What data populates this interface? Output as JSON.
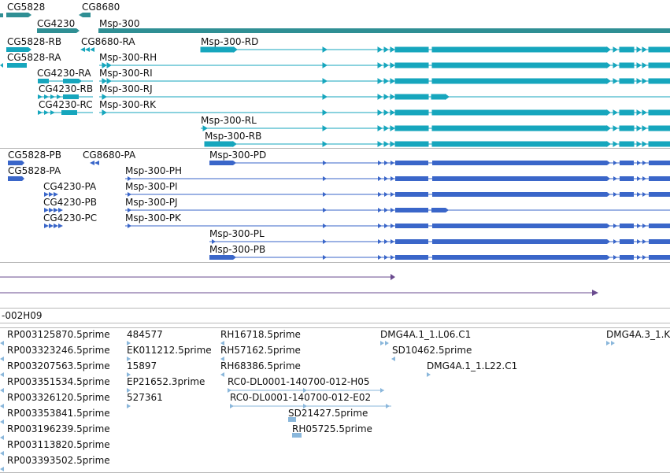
{
  "colors": {
    "gene": "#2f8f94",
    "transcript": "#16a6bd",
    "protein": "#3a66c9",
    "match": "#6a4b8f",
    "est": "#8ab7db",
    "separator": "#b8b8b8"
  },
  "genes": [
    {
      "label": "CG5828"
    },
    {
      "label": "CG8680"
    },
    {
      "label": "CG4230"
    },
    {
      "label": "Msp-300"
    }
  ],
  "transcripts": [
    {
      "label": "CG5828-RB"
    },
    {
      "label": "CG8680-RA"
    },
    {
      "label": "Msp-300-RD"
    },
    {
      "label": "CG5828-RA"
    },
    {
      "label": "Msp-300-RH"
    },
    {
      "label": "CG4230-RA"
    },
    {
      "label": "Msp-300-RI"
    },
    {
      "label": "CG4230-RB"
    },
    {
      "label": "Msp-300-RJ"
    },
    {
      "label": "CG4230-RC"
    },
    {
      "label": "Msp-300-RK"
    },
    {
      "label": "Msp-300-RL"
    },
    {
      "label": "Msp-300-RB"
    }
  ],
  "proteins": [
    {
      "label": "CG5828-PB"
    },
    {
      "label": "CG8680-PA"
    },
    {
      "label": "Msp-300-PD"
    },
    {
      "label": "CG5828-PA"
    },
    {
      "label": "Msp-300-PH"
    },
    {
      "label": "CG4230-PA"
    },
    {
      "label": "Msp-300-PI"
    },
    {
      "label": "CG4230-PB"
    },
    {
      "label": "Msp-300-PJ"
    },
    {
      "label": "CG4230-PC"
    },
    {
      "label": "Msp-300-PK"
    },
    {
      "label": "Msp-300-PL"
    },
    {
      "label": "Msp-300-PB"
    }
  ],
  "clone_track": {
    "label": "-002H09"
  },
  "ests": [
    {
      "label": "RP003125870.5prime"
    },
    {
      "label": "484577"
    },
    {
      "label": "RH16718.5prime"
    },
    {
      "label": "DMG4A.1_1.L06.C1"
    },
    {
      "label": "DMG4A.3_1.K"
    },
    {
      "label": "RP003323246.5prime"
    },
    {
      "label": "EK011212.5prime"
    },
    {
      "label": "RH57162.5prime"
    },
    {
      "label": "SD10462.5prime"
    },
    {
      "label": "RP003207563.5prime"
    },
    {
      "label": "15897"
    },
    {
      "label": "RH68386.5prime"
    },
    {
      "label": "DMG4A.1_1.L22.C1"
    },
    {
      "label": "RP003351534.5prime"
    },
    {
      "label": "EP21652.3prime"
    },
    {
      "label": "RC0-DL0001-140700-012-H05"
    },
    {
      "label": "RP003326120.5prime"
    },
    {
      "label": "527361"
    },
    {
      "label": "RC0-DL0001-140700-012-E02"
    },
    {
      "label": "RP003353841.5prime"
    },
    {
      "label": "SD21427.5prime"
    },
    {
      "label": "RP003196239.5prime"
    },
    {
      "label": "RH05725.5prime"
    },
    {
      "label": "RP003113820.5prime"
    },
    {
      "label": "RP003393502.5prime"
    }
  ]
}
